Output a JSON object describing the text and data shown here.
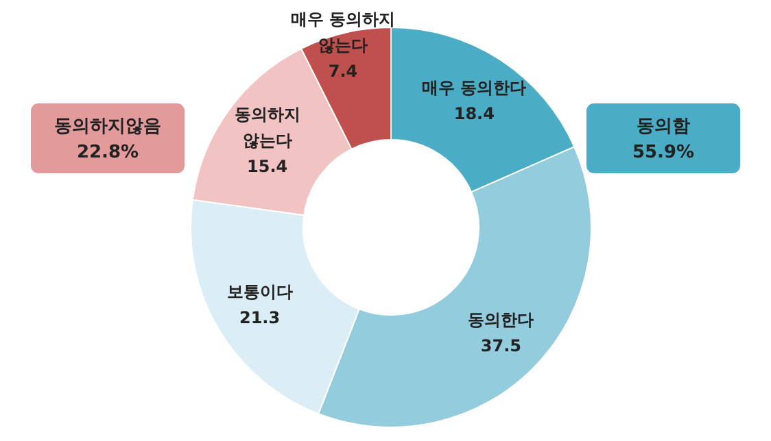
{
  "chart_data": {
    "type": "donut",
    "categories": [
      "매우 동의한다",
      "동의한다",
      "보통이다",
      "동의하지 않는다",
      "매우 동의하지 않는다"
    ],
    "values": [
      18.4,
      37.5,
      21.3,
      15.4,
      7.4
    ],
    "colors": [
      "#4bacc6",
      "#93cddd",
      "#dbeef5",
      "#f2c3c3",
      "#c0504d"
    ],
    "data_labels": true,
    "annotations": [
      "동의함 55.9%",
      "동의하지않음 22.8%"
    ]
  }
}
